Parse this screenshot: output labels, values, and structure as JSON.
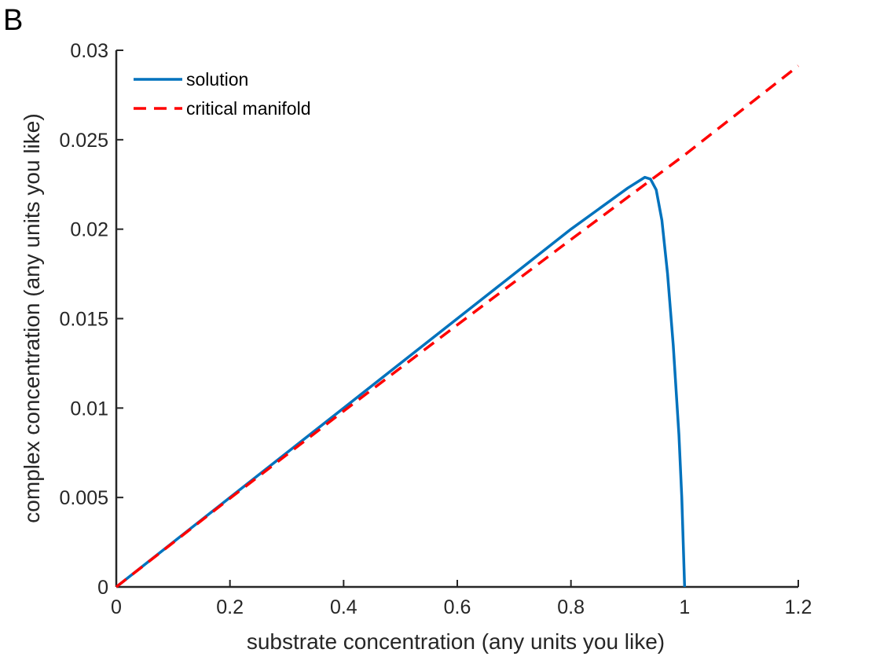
{
  "panel_label": "B",
  "chart_data": {
    "type": "line",
    "xlabel": "substrate concentration (any units you like)",
    "ylabel": "complex concentration (any units you like)",
    "xlim": [
      0,
      1.2
    ],
    "ylim": [
      0,
      0.03
    ],
    "x_ticks": [
      0,
      0.2,
      0.4,
      0.6,
      0.8,
      1,
      1.2
    ],
    "x_tick_labels": [
      "0",
      "0.2",
      "0.4",
      "0.6",
      "0.8",
      "1",
      "1.2"
    ],
    "y_ticks": [
      0,
      0.005,
      0.01,
      0.015,
      0.02,
      0.025,
      0.03
    ],
    "y_tick_labels": [
      "0",
      "0.005",
      "0.01",
      "0.015",
      "0.02",
      "0.025",
      "0.03"
    ],
    "grid": false,
    "legend_position": "top-left",
    "series": [
      {
        "name": "solution",
        "color": "#0072BD",
        "style": "solid",
        "x": [
          0,
          0.1,
          0.2,
          0.3,
          0.4,
          0.5,
          0.6,
          0.7,
          0.8,
          0.9,
          0.93,
          0.94,
          0.95,
          0.96,
          0.97,
          0.98,
          0.99,
          0.995,
          1.0
        ],
        "y": [
          0,
          0.0025,
          0.005,
          0.0075,
          0.01,
          0.0125,
          0.015,
          0.0175,
          0.02,
          0.0223,
          0.0229,
          0.0228,
          0.0222,
          0.0205,
          0.0175,
          0.0135,
          0.0085,
          0.005,
          0
        ]
      },
      {
        "name": "critical manifold",
        "color": "#FF0000",
        "style": "dashed",
        "x": [
          0,
          0.2,
          0.4,
          0.6,
          0.8,
          1.0,
          1.2
        ],
        "y": [
          0,
          0.00495,
          0.00983,
          0.01465,
          0.01942,
          0.02415,
          0.02913
        ]
      }
    ]
  }
}
